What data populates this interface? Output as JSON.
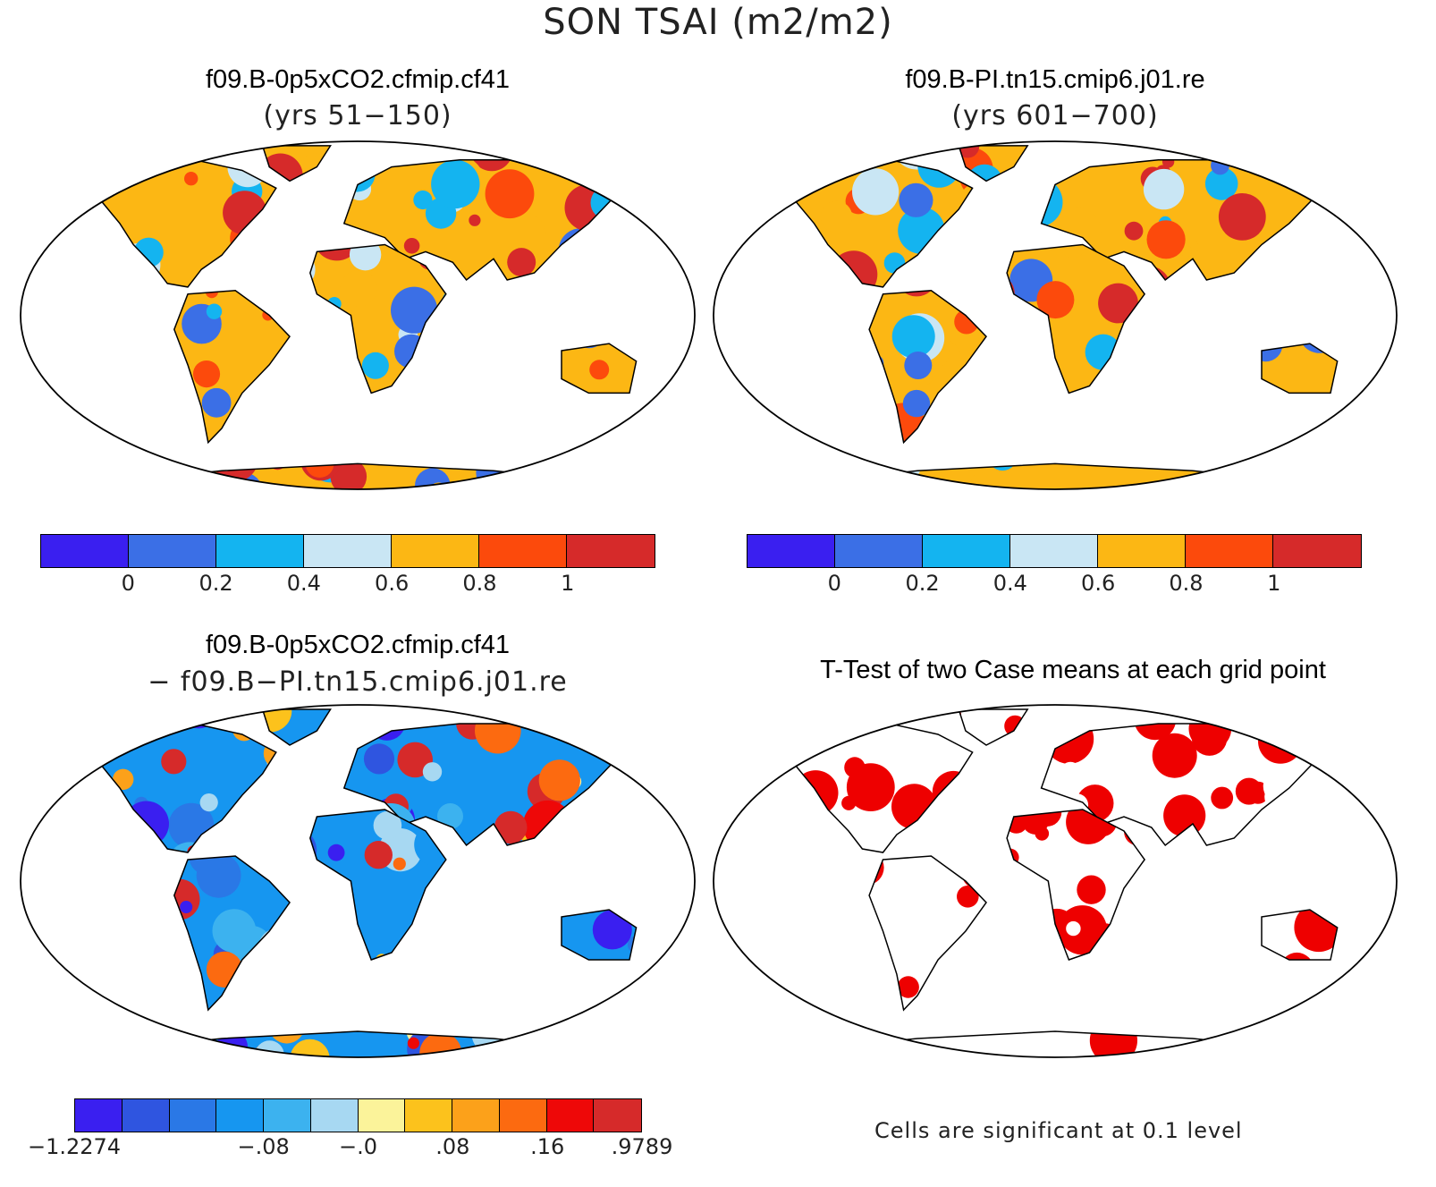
{
  "title": "SON TSAI (m2/m2)",
  "panels": {
    "top_left": {
      "title": "f09.B-0p5xCO2.cfmip.cf41",
      "subtitle": "(yrs 51−150)"
    },
    "top_right": {
      "title": "f09.B-PI.tn15.cmip6.j01.re",
      "subtitle": "(yrs 601−700)"
    },
    "bottom_left": {
      "title": "f09.B-0p5xCO2.cfmip.cf41",
      "subtitle": "− f09.B−PI.tn15.cmip6.j01.re"
    },
    "bottom_right": {
      "title": "T-Test of two Case means at each grid point",
      "note": "Cells are significant at 0.1 level"
    }
  },
  "colorbar_abs": {
    "colors": [
      "#3a1ff0",
      "#3b6fe6",
      "#14b4f0",
      "#c9e6f4",
      "#fcb714",
      "#fc4a0c",
      "#d62a2a"
    ],
    "ticks": [
      "0",
      "0.2",
      "0.4",
      "0.6",
      "0.8",
      "1"
    ]
  },
  "colorbar_diff": {
    "colors": [
      "#3a1ff0",
      "#2f55e0",
      "#2a78e6",
      "#1696f0",
      "#3cb2ef",
      "#a7d8f2",
      "#fbf39a",
      "#fcc21c",
      "#fca11a",
      "#fc6a10",
      "#ee0808",
      "#d62a2a"
    ],
    "ticks": [
      "−1.2274",
      "−.08",
      "−.0",
      ".08",
      ".16",
      ".9789"
    ]
  },
  "colors": {
    "land_outline": "#000000",
    "significance": "#ee0000"
  }
}
